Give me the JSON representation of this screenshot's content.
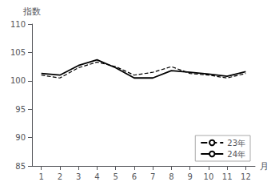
{
  "chart_data": {
    "type": "line",
    "xlabel": "月",
    "ylabel": "指数",
    "x": [
      1,
      2,
      3,
      4,
      5,
      6,
      7,
      8,
      9,
      10,
      11,
      12
    ],
    "series": [
      {
        "name": "23年",
        "color": "#000000",
        "line_style": "dashed",
        "values": [
          101.0,
          100.5,
          102.3,
          103.3,
          102.5,
          101.0,
          101.5,
          102.5,
          101.3,
          101.0,
          100.5,
          101.3
        ]
      },
      {
        "name": "24年",
        "color": "#000000",
        "line_style": "solid",
        "values": [
          101.3,
          101.0,
          102.7,
          103.7,
          102.3,
          100.5,
          100.5,
          101.8,
          101.5,
          101.2,
          100.8,
          101.6
        ]
      }
    ],
    "xlim": [
      0.5,
      12.5
    ],
    "xticks": [
      1,
      2,
      3,
      4,
      5,
      6,
      7,
      8,
      9,
      10,
      11,
      12
    ],
    "ylim": [
      85,
      110
    ],
    "yticks": [
      85,
      90,
      95,
      100,
      105,
      110
    ],
    "grid": false,
    "legend": "lower right"
  }
}
